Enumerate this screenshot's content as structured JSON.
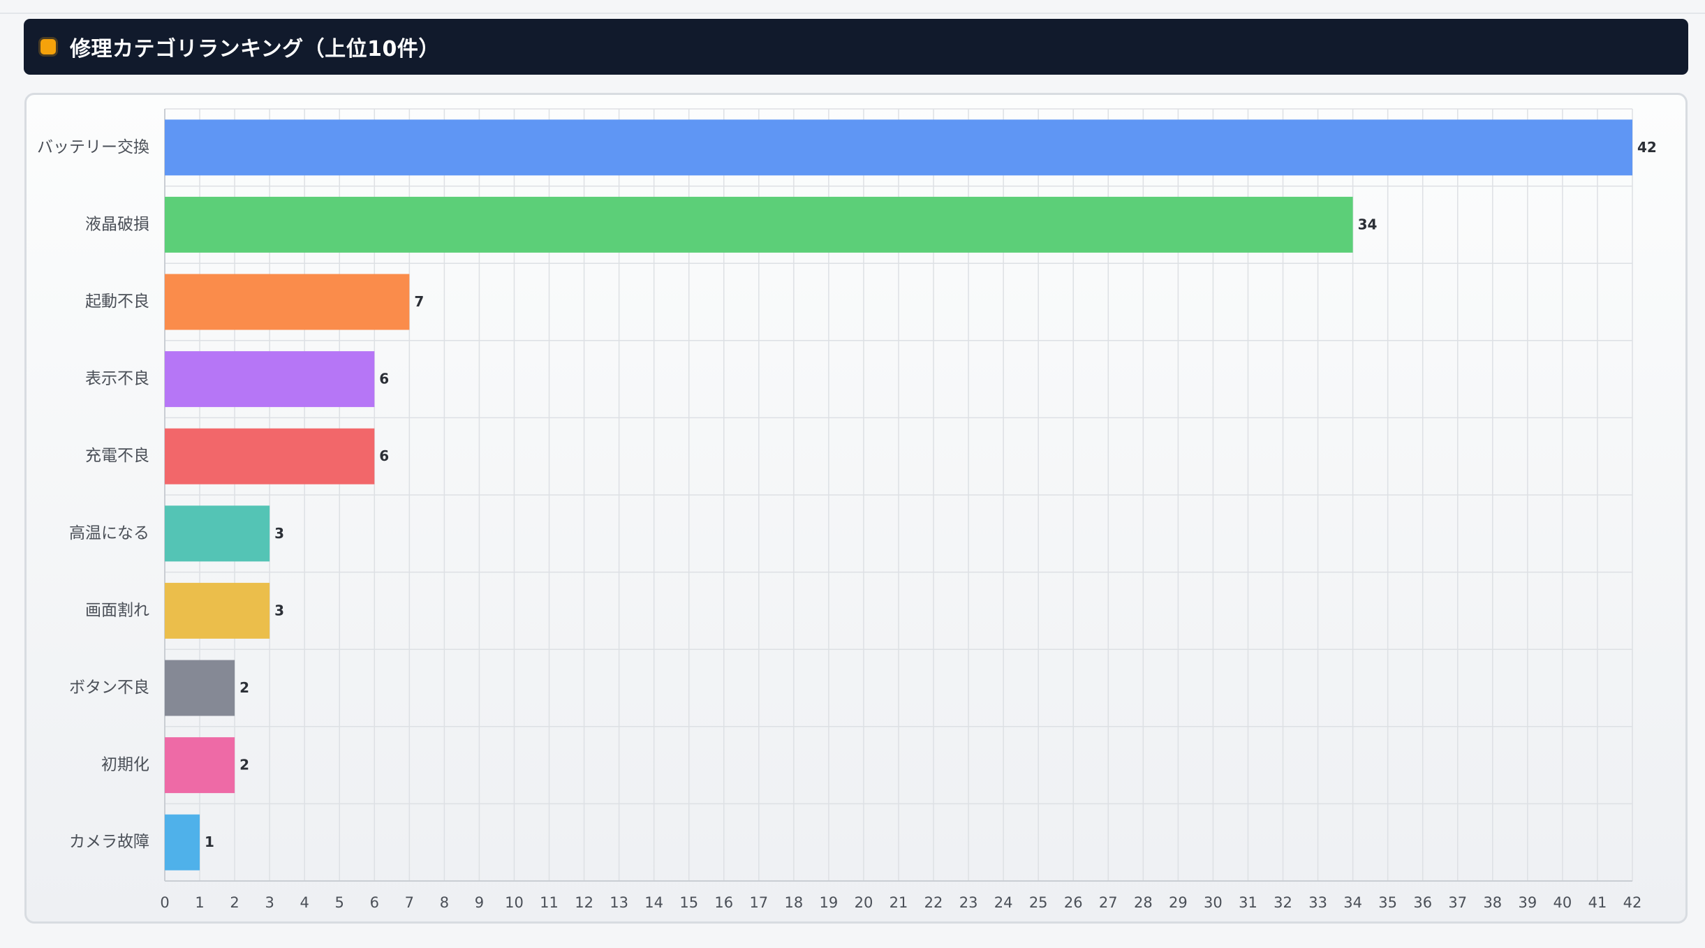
{
  "header": {
    "title": "修理カテゴリランキング（上位10件）",
    "icon": "orange-square-icon",
    "accent": "#f5a20b",
    "background": "#111a2c"
  },
  "chart_data": {
    "type": "bar",
    "orientation": "horizontal",
    "categories": [
      "バッテリー交換",
      "液晶破損",
      "起動不良",
      "表示不良",
      "充電不良",
      "高温になる",
      "画面割れ",
      "ボタン不良",
      "初期化",
      "カメラ故障"
    ],
    "values": [
      42,
      34,
      7,
      6,
      6,
      3,
      3,
      2,
      2,
      1
    ],
    "colors": [
      "#5f96f4",
      "#5ccf78",
      "#fa8c4b",
      "#b676f6",
      "#f2676a",
      "#54c4b5",
      "#ebbe4b",
      "#858995",
      "#ee6aa6",
      "#4fb1ea"
    ],
    "xlim": [
      0,
      42
    ],
    "xticks": [
      0,
      1,
      2,
      3,
      4,
      5,
      6,
      7,
      8,
      9,
      10,
      11,
      12,
      13,
      14,
      15,
      16,
      17,
      18,
      19,
      20,
      21,
      22,
      23,
      24,
      25,
      26,
      27,
      28,
      29,
      30,
      31,
      32,
      33,
      34,
      35,
      36,
      37,
      38,
      39,
      40,
      41,
      42
    ],
    "data_labels": true,
    "grid": true,
    "legend": "none"
  }
}
